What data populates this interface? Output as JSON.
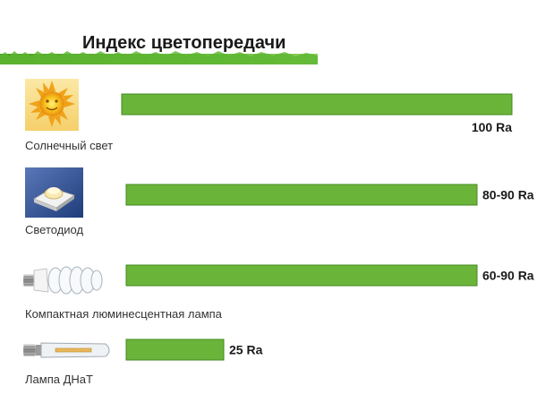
{
  "chart_data": {
    "type": "bar",
    "orientation": "horizontal",
    "title": "Индекс цветопередачи",
    "categories": [
      "Солнечный свет",
      "Светодиод",
      "Компактная люминесцентная лампа",
      "Лампа ДНаТ"
    ],
    "icons": [
      "sun-icon",
      "led-icon",
      "cfl-lamp-icon",
      "hps-lamp-icon"
    ],
    "values": [
      100,
      90,
      90,
      25
    ],
    "value_labels": [
      "100 Ra",
      "80-90 Ra",
      "60-90 Ra",
      "25 Ra"
    ],
    "xlim": [
      0,
      100
    ],
    "grid": false,
    "legend": "none"
  },
  "colors": {
    "bar_fill": "#6bb43a",
    "bar_stroke": "#3f8a1f",
    "title_band": "#5cb531"
  }
}
